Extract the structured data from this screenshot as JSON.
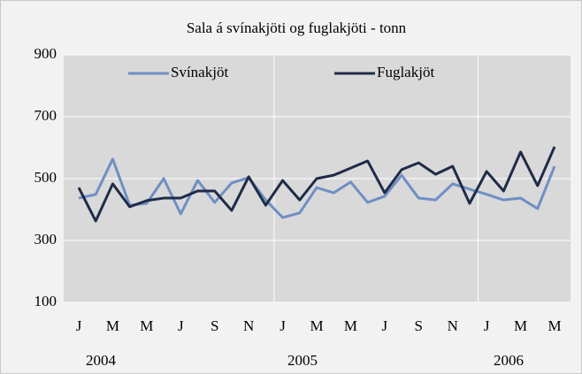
{
  "chart_data": {
    "type": "line",
    "title": "Sala á svínakjöti og fuglakjöti - tonn",
    "categories": [
      "J",
      null,
      "M",
      null,
      "M",
      null,
      "J",
      null,
      "S",
      null,
      "N",
      null,
      "J",
      null,
      "M",
      null,
      "M",
      null,
      "J",
      null,
      "S",
      null,
      "N",
      null,
      "J",
      null,
      "M",
      null,
      "M"
    ],
    "year_labels": [
      "2004",
      "2005",
      "2006"
    ],
    "series": [
      {
        "name": "Svínakjöt",
        "color": "#6f8fc4",
        "values": [
          437,
          449,
          563,
          414,
          420,
          500,
          386,
          494,
          423,
          486,
          503,
          431,
          374,
          389,
          471,
          454,
          489,
          423,
          443,
          511,
          437,
          431,
          483,
          466,
          449,
          431,
          437,
          403,
          540
        ]
      },
      {
        "name": "Fuglakjöt",
        "color": "#1f2b48",
        "values": [
          471,
          363,
          483,
          409,
          429,
          437,
          437,
          460,
          460,
          397,
          506,
          414,
          494,
          431,
          500,
          511,
          534,
          557,
          454,
          529,
          551,
          514,
          540,
          420,
          523,
          460,
          586,
          477,
          603
        ]
      }
    ],
    "ylim": [
      100,
      900
    ],
    "yticks": [
      100,
      300,
      500,
      700,
      900
    ],
    "grid": true
  }
}
